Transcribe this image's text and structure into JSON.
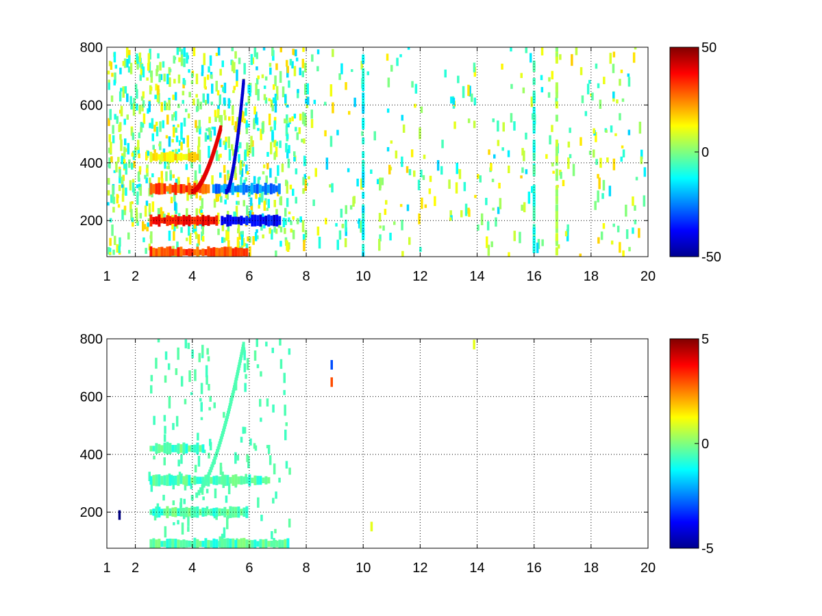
{
  "chart_data": [
    {
      "type": "heatmap",
      "title": "",
      "xlabel": "",
      "ylabel": "",
      "x_ticks": [
        "1",
        "2",
        "4",
        "6",
        "8",
        "10",
        "12",
        "14",
        "16",
        "18",
        "20"
      ],
      "x_tick_values": [
        1,
        2,
        4,
        6,
        8,
        10,
        12,
        14,
        16,
        18,
        20
      ],
      "y_ticks": [
        "200",
        "400",
        "600",
        "800"
      ],
      "y_tick_values": [
        200,
        400,
        600,
        800
      ],
      "xlim": [
        1,
        20
      ],
      "ylim": [
        75,
        800
      ],
      "grid": true,
      "grid_style": "dotted",
      "colormap": "jet",
      "colorbar": {
        "min": -50,
        "max": 50,
        "labels": [
          "50",
          "0",
          "-50"
        ],
        "label_values": [
          50,
          0,
          -50
        ]
      },
      "features": [
        {
          "kind": "band",
          "y": 90,
          "x0": 2.5,
          "x1": 6.0,
          "value": 30
        },
        {
          "kind": "band",
          "y": 200,
          "x0": 2.5,
          "x1": 5.0,
          "value": 38
        },
        {
          "kind": "band",
          "y": 200,
          "x0": 5.0,
          "x1": 7.2,
          "value": -38
        },
        {
          "kind": "band",
          "y": 310,
          "x0": 2.5,
          "x1": 4.7,
          "value": 30
        },
        {
          "kind": "band",
          "y": 310,
          "x0": 4.7,
          "x1": 7.2,
          "value": -25
        },
        {
          "kind": "band",
          "y": 420,
          "x0": 2.5,
          "x1": 4.3,
          "value": 15
        },
        {
          "kind": "curve",
          "x0": 4.0,
          "y0": 300,
          "x1": 5.0,
          "y1": 520,
          "value": 40
        },
        {
          "kind": "curve",
          "x0": 5.2,
          "y0": 300,
          "x1": 5.8,
          "y1": 680,
          "value": -42
        },
        {
          "kind": "column",
          "x": 10.0,
          "value": -12
        },
        {
          "kind": "column",
          "x": 16.0,
          "value": -8
        },
        {
          "kind": "column",
          "x": 16.8,
          "value": 5
        }
      ]
    },
    {
      "type": "heatmap",
      "title": "",
      "xlabel": "",
      "ylabel": "",
      "x_ticks": [
        "1",
        "2",
        "4",
        "6",
        "8",
        "10",
        "12",
        "14",
        "16",
        "18",
        "20"
      ],
      "x_tick_values": [
        1,
        2,
        4,
        6,
        8,
        10,
        12,
        14,
        16,
        18,
        20
      ],
      "y_ticks": [
        "200",
        "400",
        "600",
        "800"
      ],
      "y_tick_values": [
        200,
        400,
        600,
        800
      ],
      "xlim": [
        1,
        20
      ],
      "ylim": [
        75,
        800
      ],
      "grid": true,
      "grid_style": "dotted",
      "colormap": "jet",
      "colorbar": {
        "min": -5,
        "max": 5,
        "labels": [
          "5",
          "0",
          "-5"
        ],
        "label_values": [
          5,
          0,
          -5
        ]
      },
      "features": [
        {
          "kind": "band",
          "y": 90,
          "x0": 2.5,
          "x1": 7.5,
          "value": -0.5
        },
        {
          "kind": "band",
          "y": 200,
          "x0": 2.5,
          "x1": 6.0,
          "value": -0.5
        },
        {
          "kind": "band",
          "y": 310,
          "x0": 2.5,
          "x1": 6.8,
          "value": -0.5
        },
        {
          "kind": "band",
          "y": 420,
          "x0": 2.5,
          "x1": 4.5,
          "value": -0.5
        },
        {
          "kind": "curve",
          "x0": 4.0,
          "y0": 250,
          "x1": 5.8,
          "y1": 780,
          "value": -0.5
        },
        {
          "kind": "point",
          "x": 1.45,
          "y": 190,
          "value": -5
        },
        {
          "kind": "point",
          "x": 8.9,
          "y": 710,
          "value": -3
        },
        {
          "kind": "point",
          "x": 8.9,
          "y": 650,
          "value": 3
        },
        {
          "kind": "point",
          "x": 10.3,
          "y": 150,
          "value": 1
        },
        {
          "kind": "point",
          "x": 13.9,
          "y": 780,
          "value": 1
        }
      ]
    }
  ]
}
